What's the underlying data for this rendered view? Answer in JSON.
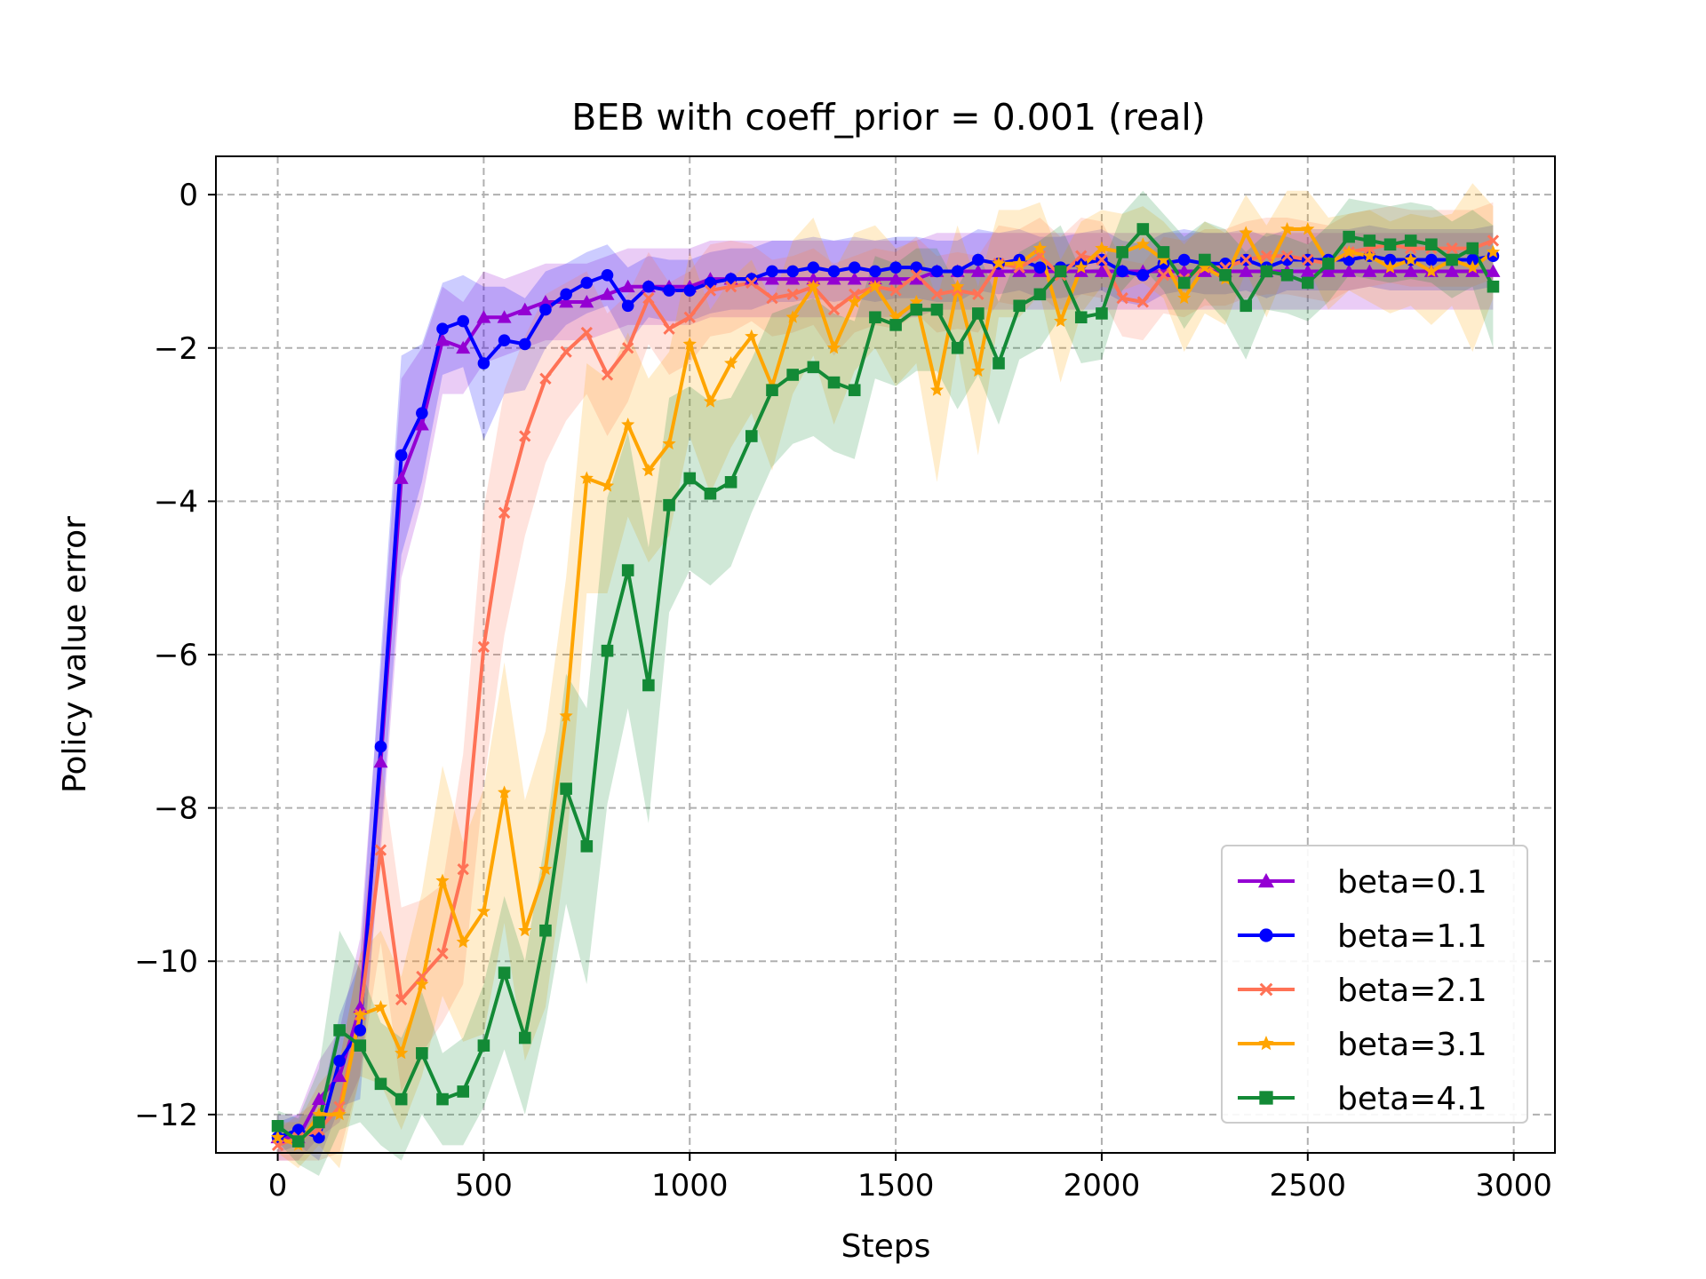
{
  "chart_data": {
    "type": "line",
    "title": "BEB with coeff_prior = 0.001 (real)",
    "xlabel": "Steps",
    "ylabel": "Policy value error",
    "xlim": [
      -150,
      3100
    ],
    "ylim": [
      -12.5,
      0.5
    ],
    "xticks": [
      0,
      500,
      1000,
      1500,
      2000,
      2500,
      3000
    ],
    "xtick_labels": [
      "0",
      "500",
      "1000",
      "1500",
      "2000",
      "2500",
      "3000"
    ],
    "yticks": [
      0,
      -2,
      -4,
      -6,
      -8,
      -10,
      -12
    ],
    "ytick_labels": [
      "0",
      "−2",
      "−4",
      "−6",
      "−8",
      "−10",
      "−12"
    ],
    "grid": true,
    "legend_position": "lower-right",
    "x": [
      0,
      50,
      100,
      150,
      200,
      250,
      300,
      350,
      400,
      450,
      500,
      550,
      600,
      650,
      700,
      750,
      800,
      850,
      900,
      950,
      1000,
      1050,
      1100,
      1150,
      1200,
      1250,
      1300,
      1350,
      1400,
      1450,
      1500,
      1550,
      1600,
      1650,
      1700,
      1750,
      1800,
      1850,
      1900,
      1950,
      2000,
      2050,
      2100,
      2150,
      2200,
      2250,
      2300,
      2350,
      2400,
      2450,
      2500,
      2550,
      2600,
      2650,
      2700,
      2750,
      2800,
      2850,
      2900,
      2950
    ],
    "series": [
      {
        "name": "beta=0.1",
        "color": "#9400d3",
        "marker": "triangle",
        "values": [
          -12.3,
          -12.3,
          -11.8,
          -11.5,
          -10.6,
          -7.4,
          -3.7,
          -3.0,
          -1.9,
          -2.0,
          -1.6,
          -1.6,
          -1.5,
          -1.4,
          -1.4,
          -1.4,
          -1.3,
          -1.2,
          -1.2,
          -1.2,
          -1.2,
          -1.1,
          -1.1,
          -1.1,
          -1.1,
          -1.1,
          -1.1,
          -1.1,
          -1.1,
          -1.1,
          -1.1,
          -1.1,
          -1.0,
          -1.0,
          -1.0,
          -1.0,
          -1.0,
          -1.0,
          -1.0,
          -1.0,
          -1.0,
          -1.0,
          -1.0,
          -1.0,
          -1.0,
          -1.0,
          -1.0,
          -1.0,
          -1.0,
          -1.0,
          -1.0,
          -1.0,
          -1.0,
          -1.0,
          -1.0,
          -1.0,
          -1.0,
          -1.0,
          -1.0,
          -1.0
        ],
        "band": [
          0.3,
          0.3,
          0.5,
          0.6,
          0.9,
          1.2,
          1.3,
          1.0,
          0.7,
          0.6,
          0.6,
          0.5,
          0.5,
          0.5,
          0.5,
          0.5,
          0.5,
          0.5,
          0.5,
          0.5,
          0.5,
          0.5,
          0.5,
          0.5,
          0.5,
          0.5,
          0.5,
          0.5,
          0.5,
          0.5,
          0.5,
          0.5,
          0.5,
          0.5,
          0.5,
          0.5,
          0.5,
          0.5,
          0.5,
          0.5,
          0.5,
          0.5,
          0.5,
          0.5,
          0.5,
          0.5,
          0.5,
          0.5,
          0.5,
          0.5,
          0.5,
          0.5,
          0.5,
          0.5,
          0.5,
          0.5,
          0.5,
          0.5,
          0.5,
          0.5
        ]
      },
      {
        "name": "beta=1.1",
        "color": "#0000ff",
        "marker": "circle",
        "values": [
          -12.3,
          -12.2,
          -12.3,
          -11.3,
          -10.9,
          -7.2,
          -3.4,
          -2.85,
          -1.75,
          -1.65,
          -2.2,
          -1.9,
          -1.95,
          -1.5,
          -1.3,
          -1.15,
          -1.05,
          -1.45,
          -1.2,
          -1.25,
          -1.25,
          -1.15,
          -1.1,
          -1.1,
          -1.0,
          -1.0,
          -0.95,
          -1.0,
          -0.95,
          -1.0,
          -0.95,
          -0.95,
          -1.0,
          -1.0,
          -0.85,
          -0.9,
          -0.85,
          -0.95,
          -0.95,
          -0.9,
          -0.85,
          -1.0,
          -1.05,
          -0.9,
          -0.85,
          -0.9,
          -0.9,
          -0.85,
          -0.95,
          -0.85,
          -0.85,
          -0.85,
          -0.85,
          -0.8,
          -0.85,
          -0.85,
          -0.85,
          -0.85,
          -0.85,
          -0.8
        ],
        "band": [
          0.2,
          0.2,
          0.3,
          0.6,
          0.9,
          1.2,
          1.3,
          0.9,
          0.6,
          0.6,
          1.0,
          0.7,
          0.6,
          0.5,
          0.4,
          0.4,
          0.4,
          0.5,
          0.4,
          0.4,
          0.4,
          0.4,
          0.4,
          0.4,
          0.4,
          0.4,
          0.4,
          0.4,
          0.4,
          0.4,
          0.4,
          0.4,
          0.4,
          0.4,
          0.4,
          0.4,
          0.4,
          0.4,
          0.4,
          0.4,
          0.4,
          0.4,
          0.4,
          0.4,
          0.4,
          0.4,
          0.4,
          0.4,
          0.4,
          0.4,
          0.4,
          0.4,
          0.4,
          0.4,
          0.4,
          0.4,
          0.4,
          0.4,
          0.4,
          0.4
        ]
      },
      {
        "name": "beta=2.1",
        "color": "#ff7256",
        "marker": "x",
        "values": [
          -12.4,
          -12.3,
          -12.2,
          -11.9,
          -10.7,
          -8.55,
          -10.5,
          -10.2,
          -9.9,
          -8.8,
          -5.9,
          -4.15,
          -3.15,
          -2.4,
          -2.05,
          -1.8,
          -2.35,
          -2.0,
          -1.35,
          -1.75,
          -1.6,
          -1.25,
          -1.2,
          -1.15,
          -1.35,
          -1.3,
          -1.2,
          -1.5,
          -1.3,
          -1.2,
          -1.25,
          -1.05,
          -1.3,
          -1.25,
          -1.3,
          -0.9,
          -0.95,
          -0.8,
          -1.05,
          -0.8,
          -0.85,
          -1.35,
          -1.4,
          -1.05,
          -1.1,
          -0.95,
          -0.95,
          -0.85,
          -0.8,
          -0.8,
          -0.85,
          -0.9,
          -0.75,
          -0.7,
          -0.65,
          -0.7,
          -0.7,
          -0.7,
          -0.7,
          -0.6
        ],
        "band": [
          0.2,
          0.3,
          0.4,
          0.6,
          0.8,
          1.2,
          1.2,
          1.0,
          0.9,
          1.5,
          1.8,
          1.6,
          1.3,
          1.1,
          0.9,
          0.8,
          0.8,
          0.7,
          0.6,
          0.6,
          0.6,
          0.6,
          0.6,
          0.5,
          0.5,
          0.5,
          0.5,
          0.6,
          0.5,
          0.5,
          0.5,
          0.5,
          0.5,
          0.5,
          0.5,
          0.5,
          0.5,
          0.5,
          0.5,
          0.5,
          0.5,
          0.5,
          0.5,
          0.5,
          0.5,
          0.5,
          0.5,
          0.5,
          0.5,
          0.5,
          0.5,
          0.5,
          0.5,
          0.5,
          0.5,
          0.5,
          0.5,
          0.5,
          0.5,
          0.5
        ]
      },
      {
        "name": "beta=3.1",
        "color": "#ffa500",
        "marker": "star",
        "values": [
          -12.3,
          -12.4,
          -12.0,
          -12.0,
          -10.7,
          -10.6,
          -11.2,
          -10.3,
          -8.95,
          -9.75,
          -9.35,
          -7.8,
          -9.6,
          -8.8,
          -6.8,
          -3.7,
          -3.8,
          -3.0,
          -3.6,
          -3.25,
          -1.95,
          -2.7,
          -2.2,
          -1.85,
          -2.5,
          -1.6,
          -1.2,
          -2.0,
          -1.4,
          -1.2,
          -1.6,
          -1.4,
          -2.55,
          -1.2,
          -2.3,
          -0.9,
          -0.9,
          -0.7,
          -1.65,
          -0.95,
          -0.7,
          -0.75,
          -0.65,
          -0.85,
          -1.35,
          -0.95,
          -1.1,
          -0.5,
          -1.0,
          -0.45,
          -0.45,
          -0.9,
          -0.75,
          -0.8,
          -0.95,
          -0.85,
          -1.0,
          -0.85,
          -0.95,
          -0.75
        ],
        "band": [
          0.2,
          0.3,
          0.4,
          0.7,
          0.8,
          1.0,
          1.0,
          1.2,
          1.5,
          1.3,
          1.6,
          1.7,
          1.7,
          1.8,
          1.8,
          1.5,
          1.4,
          1.2,
          1.2,
          1.2,
          1.2,
          1.2,
          1.1,
          1.0,
          1.1,
          1.0,
          0.9,
          1.0,
          0.9,
          0.8,
          0.9,
          0.8,
          1.2,
          0.8,
          1.1,
          0.7,
          0.7,
          0.6,
          0.8,
          0.6,
          0.5,
          0.5,
          0.5,
          0.5,
          0.7,
          0.6,
          0.6,
          0.5,
          0.6,
          0.5,
          0.5,
          0.6,
          0.5,
          0.6,
          0.6,
          0.6,
          0.7,
          0.6,
          1.1,
          0.6
        ]
      },
      {
        "name": "beta=4.1",
        "color": "#138a36",
        "marker": "square",
        "values": [
          -12.15,
          -12.35,
          -12.1,
          -10.9,
          -11.1,
          -11.6,
          -11.8,
          -11.2,
          -11.8,
          -11.7,
          -11.1,
          -10.15,
          -11.0,
          -9.6,
          -7.75,
          -8.5,
          -5.95,
          -4.9,
          -6.4,
          -4.05,
          -3.7,
          -3.9,
          -3.75,
          -3.15,
          -2.55,
          -2.35,
          -2.25,
          -2.45,
          -2.55,
          -1.6,
          -1.7,
          -1.5,
          -1.5,
          -2.0,
          -1.55,
          -2.2,
          -1.45,
          -1.3,
          -1.0,
          -1.6,
          -1.55,
          -0.75,
          -0.45,
          -0.75,
          -1.15,
          -0.85,
          -1.05,
          -1.45,
          -1.0,
          -1.05,
          -1.15,
          -0.9,
          -0.55,
          -0.6,
          -0.65,
          -0.6,
          -0.65,
          -0.85,
          -0.7,
          -1.2
        ],
        "band": [
          0.2,
          0.3,
          0.7,
          1.3,
          1.0,
          0.8,
          0.8,
          0.8,
          0.6,
          0.7,
          0.8,
          1.0,
          1.0,
          1.2,
          1.5,
          1.8,
          2.0,
          1.8,
          1.8,
          1.4,
          1.2,
          1.2,
          1.1,
          1.0,
          1.0,
          0.9,
          0.9,
          0.9,
          0.9,
          0.8,
          0.8,
          0.8,
          0.8,
          0.8,
          0.8,
          0.8,
          0.7,
          0.7,
          0.6,
          0.6,
          0.6,
          0.5,
          0.5,
          0.5,
          0.6,
          0.5,
          0.6,
          0.7,
          0.5,
          0.5,
          0.5,
          0.5,
          0.5,
          0.5,
          0.5,
          0.5,
          0.5,
          0.5,
          0.5,
          0.8
        ]
      }
    ]
  }
}
